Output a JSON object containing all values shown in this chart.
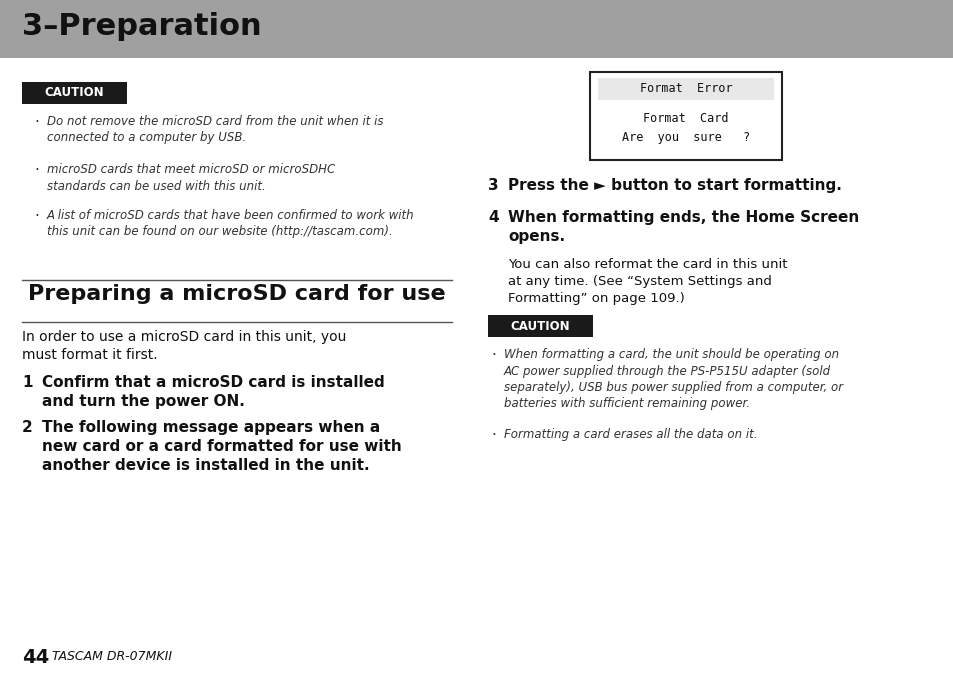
{
  "page_bg": "#ffffff",
  "header_bg": "#a0a0a0",
  "header_text": "3–Preparation",
  "header_text_color": "#111111",
  "caution_bg": "#1a1a1a",
  "caution_text": "CAUTION",
  "caution_text_color": "#ffffff",
  "bullet_items_left": [
    "Do not remove the microSD card from the unit when it is\nconnected to a computer by USB.",
    "microSD cards that meet microSD or microSDHC\nstandards can be used with this unit.",
    "A list of microSD cards that have been confirmed to work with\nthis unit can be found on our website (http://tascam.com)."
  ],
  "section_title": "Preparing a microSD card for use",
  "section_intro": "In order to use a microSD card in this unit, you\nmust format it first.",
  "display_lines": [
    "Format  Error",
    "Format  Card",
    "Are  you  sure   ?"
  ],
  "display_bg": "#ffffff",
  "display_border": "#222222",
  "right_body": "You can also reformat the card in this unit\nat any time. (See “System Settings and\nFormatting” on page 109.)",
  "bullet_items_right": [
    "When formatting a card, the unit should be operating on\nAC power supplied through the PS-P515U adapter (sold\nseparately), USB bus power supplied from a computer, or\nbatteries with sufficient remaining power.",
    "Formatting a card erases all the data on it."
  ],
  "footer_num": "44",
  "footer_text": "TASCAM DR-07MKII"
}
